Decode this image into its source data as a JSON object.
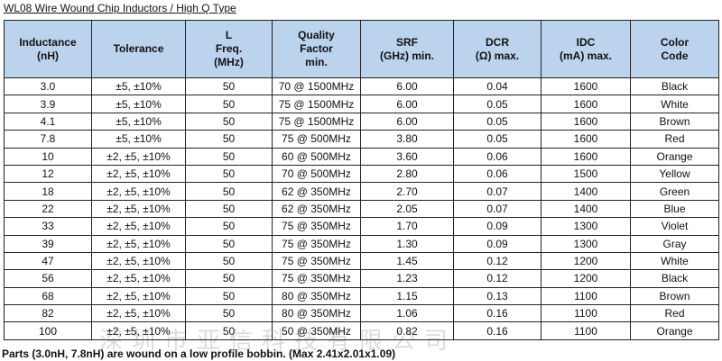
{
  "title": "WL08 Wire Wound Chip Inductors / High Q Type",
  "headers": [
    [
      "Inductance",
      "(nH)"
    ],
    [
      "Tolerance"
    ],
    [
      "L",
      "Freq.",
      "(MHz)"
    ],
    [
      "Quality",
      "Factor",
      "min."
    ],
    [
      "SRF",
      "(GHz) min."
    ],
    [
      "DCR",
      "(Ω) max."
    ],
    [
      "IDC",
      "(mA) max."
    ],
    [
      "Color",
      "Code"
    ]
  ],
  "rows": [
    [
      "3.0",
      "±5, ±10%",
      "50",
      "70 @ 1500MHz",
      "6.00",
      "0.04",
      "1600",
      "Black"
    ],
    [
      "3.9",
      "±5, ±10%",
      "50",
      "75 @ 1500MHz",
      "6.00",
      "0.05",
      "1600",
      "White"
    ],
    [
      "4.1",
      "±5, ±10%",
      "50",
      "75 @ 1500MHz",
      "6.00",
      "0.05",
      "1600",
      "Brown"
    ],
    [
      "7.8",
      "±5, ±10%",
      "50",
      "75 @ 500MHz",
      "3.80",
      "0.05",
      "1600",
      "Red"
    ],
    [
      "10",
      "±2, ±5, ±10%",
      "50",
      "60 @ 500MHz",
      "3.60",
      "0.06",
      "1600",
      "Orange"
    ],
    [
      "12",
      "±2, ±5, ±10%",
      "50",
      "70 @ 500MHz",
      "2.80",
      "0.06",
      "1500",
      "Yellow"
    ],
    [
      "18",
      "±2, ±5, ±10%",
      "50",
      "62 @ 350MHz",
      "2.70",
      "0.07",
      "1400",
      "Green"
    ],
    [
      "22",
      "±2, ±5, ±10%",
      "50",
      "62 @ 350MHz",
      "2.05",
      "0.07",
      "1400",
      "Blue"
    ],
    [
      "33",
      "±2, ±5, ±10%",
      "50",
      "75 @ 350MHz",
      "1.70",
      "0.09",
      "1300",
      "Violet"
    ],
    [
      "39",
      "±2, ±5, ±10%",
      "50",
      "75 @ 350MHz",
      "1.30",
      "0.09",
      "1300",
      "Gray"
    ],
    [
      "47",
      "±2, ±5, ±10%",
      "50",
      "75 @ 350MHz",
      "1.45",
      "0.12",
      "1200",
      "White"
    ],
    [
      "56",
      "±2, ±5, ±10%",
      "50",
      "75 @ 350MHz",
      "1.23",
      "0.12",
      "1200",
      "Black"
    ],
    [
      "68",
      "±2, ±5, ±10%",
      "50",
      "80 @ 350MHz",
      "1.15",
      "0.13",
      "1100",
      "Brown"
    ],
    [
      "82",
      "±2, ±5, ±10%",
      "50",
      "80 @ 350MHz",
      "1.06",
      "0.16",
      "1100",
      "Red"
    ],
    [
      "100",
      "±2, ±5, ±10%",
      "50",
      "50 @ 350MHz",
      "0.82",
      "0.16",
      "1100",
      "Orange"
    ]
  ],
  "footnote": "Parts (3.0nH, 7.8nH) are wound on a low profile bobbin. (Max 2.41x2.01x1.09)",
  "watermark": "深圳市亚信科技有限公司",
  "colors": {
    "header_bg": "#bcd3ee",
    "border": "#222222"
  }
}
